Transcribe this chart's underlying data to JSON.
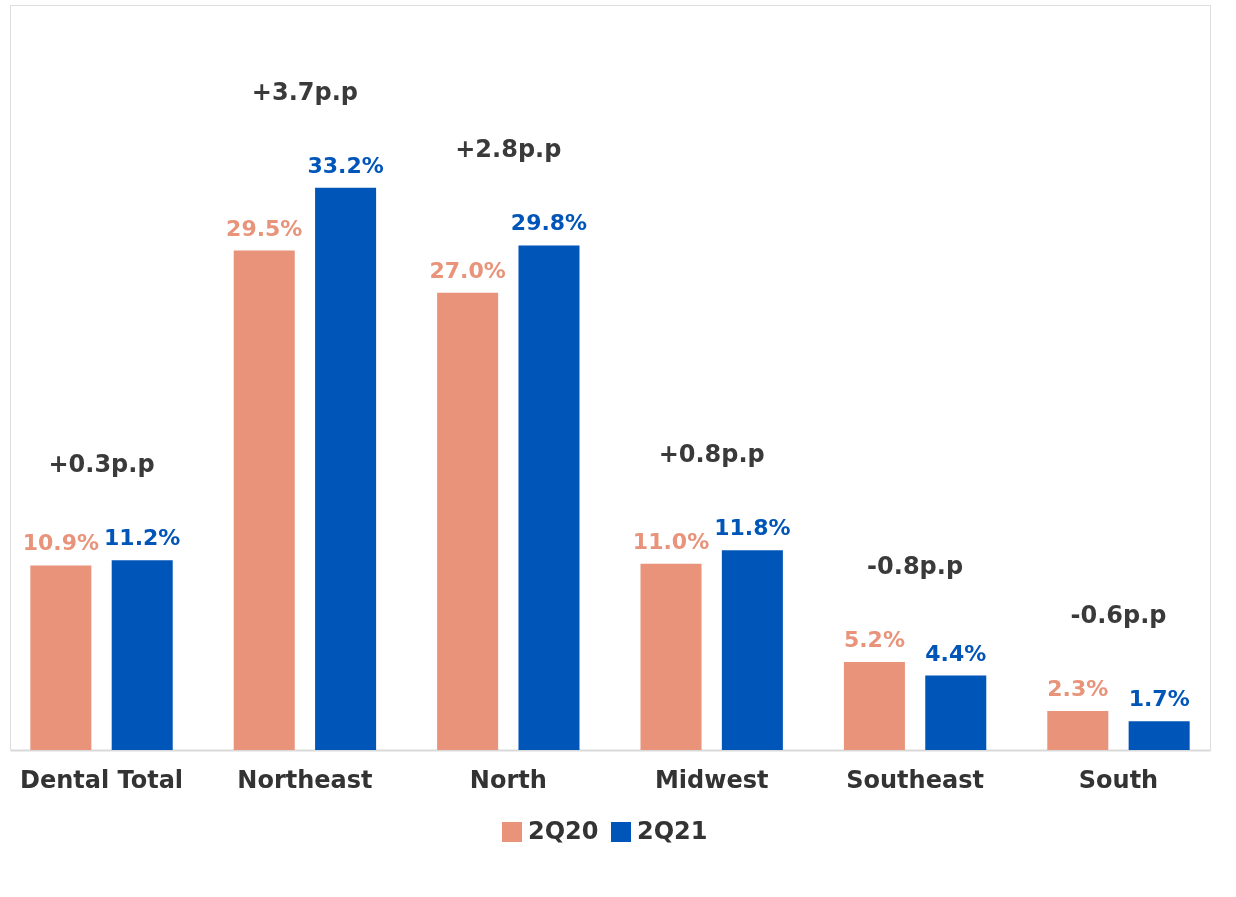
{
  "chart_data": {
    "type": "bar",
    "categories": [
      "Dental Total",
      "Northeast",
      "North",
      "Midwest",
      "Southeast",
      "South"
    ],
    "series": [
      {
        "name": "2Q20",
        "color": "#e8937a",
        "values": [
          10.9,
          29.5,
          27.0,
          11.0,
          5.2,
          2.3
        ],
        "value_labels": [
          "10.9%",
          "29.5%",
          "27.0%",
          "11.0%",
          "5.2%",
          "2.3%"
        ]
      },
      {
        "name": "2Q21",
        "color": "#0055b8",
        "values": [
          11.2,
          33.2,
          29.8,
          11.8,
          4.4,
          1.7
        ],
        "value_labels": [
          "11.2%",
          "33.2%",
          "29.8%",
          "11.8%",
          "4.4%",
          "1.7%"
        ]
      }
    ],
    "ylim": [
      0,
      44
    ],
    "tick_labels": "x",
    "grid": false,
    "legend": "bottom",
    "annotations": [
      "+0.3p.p",
      "+3.7p.p",
      "+2.8p.p",
      "+0.8p.p",
      "-0.8p.p",
      "-0.6p.p"
    ]
  }
}
